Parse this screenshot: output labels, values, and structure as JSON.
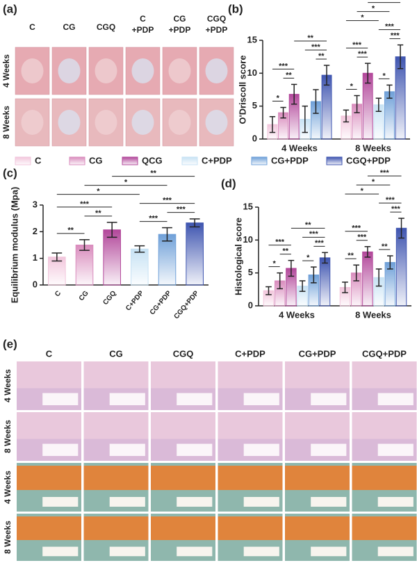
{
  "panel_labels": [
    "(a)",
    "(b)",
    "(c)",
    "(d)",
    "(e)"
  ],
  "photo_grid": {
    "columns": [
      [
        "C"
      ],
      [
        "CG"
      ],
      [
        "CGQ"
      ],
      [
        "C",
        "+PDP"
      ],
      [
        "CG",
        "+PDP"
      ],
      [
        "CGQ",
        "+PDP"
      ]
    ],
    "rows": [
      "4 Weeks",
      "8 Weeks"
    ]
  },
  "histology_grid": {
    "columns": [
      "C",
      "CG",
      "CGQ",
      "C+PDP",
      "CG+PDP",
      "CGQ+PDP"
    ],
    "rows": [
      "4 Weeks",
      "8 Weeks",
      "4 Weeks",
      "8 Weeks"
    ]
  },
  "chart_data": [
    {
      "type": "grouped_bar",
      "y_label": "O'Driscoll score",
      "categories": [
        "4 Weeks",
        "8 Weeks"
      ],
      "series": [
        {
          "name": "C",
          "color": "#f2c6dc",
          "values": [
            2.2,
            3.5
          ],
          "errors": [
            1.2,
            0.9
          ]
        },
        {
          "name": "CG",
          "color": "#d98cbd",
          "values": [
            4.0,
            5.3
          ],
          "errors": [
            0.8,
            1.3
          ]
        },
        {
          "name": "QCG",
          "color": "#b2479a",
          "values": [
            6.8,
            10.0
          ],
          "errors": [
            1.5,
            1.5
          ]
        },
        {
          "name": "C+PDP",
          "color": "#c7e2f4",
          "values": [
            3.0,
            5.2
          ],
          "errors": [
            2.0,
            1.0
          ]
        },
        {
          "name": "CG+PDP",
          "color": "#6fa0d8",
          "values": [
            5.7,
            7.2
          ],
          "errors": [
            1.8,
            1.0
          ]
        },
        {
          "name": "CGQ+PDP",
          "color": "#3f55b0",
          "values": [
            9.7,
            12.5
          ],
          "errors": [
            1.5,
            1.8
          ]
        }
      ],
      "ylim": [
        0,
        15
      ],
      "yticks": [
        0,
        5,
        10,
        15
      ],
      "annotations": [
        {
          "label": "*",
          "between": [
            0,
            1
          ]
        },
        {
          "label": "**",
          "between": [
            1,
            2
          ]
        },
        {
          "label": "***",
          "between": [
            0,
            2
          ]
        },
        {
          "label": "**",
          "between": [
            4,
            5
          ]
        },
        {
          "label": "***",
          "between": [
            3,
            5
          ]
        },
        {
          "label": "**",
          "between": [
            2,
            5
          ]
        },
        {
          "label": "*",
          "between": [
            6,
            7
          ]
        },
        {
          "label": "***",
          "between": [
            7,
            8
          ]
        },
        {
          "label": "***",
          "between": [
            6,
            8
          ]
        },
        {
          "label": "*",
          "between": [
            9,
            10
          ]
        },
        {
          "label": "***",
          "between": [
            10,
            11
          ]
        },
        {
          "label": "***",
          "between": [
            9,
            11
          ]
        },
        {
          "label": "*",
          "between": [
            6,
            9
          ]
        },
        {
          "label": "*",
          "between": [
            7,
            10
          ]
        },
        {
          "label": "**",
          "between": [
            8,
            11
          ]
        }
      ]
    },
    {
      "type": "bar",
      "y_label": "Equilibrium modulus (Mpa)",
      "categories": [
        "C",
        "CG",
        "CGQ",
        "C+PDP",
        "CG+PDP",
        "CGQ+PDP"
      ],
      "values": [
        1.05,
        1.5,
        2.07,
        1.35,
        1.9,
        2.33
      ],
      "errors": [
        0.15,
        0.2,
        0.28,
        0.12,
        0.25,
        0.15
      ],
      "colors": [
        "#f2c6dc",
        "#d98cbd",
        "#b2479a",
        "#c7e2f4",
        "#6fa0d8",
        "#3f55b0"
      ],
      "ylim": [
        0,
        3
      ],
      "yticks": [
        0,
        1,
        2,
        3
      ],
      "annotations": [
        {
          "label": "**",
          "between": [
            0,
            1
          ]
        },
        {
          "label": "**",
          "between": [
            1,
            2
          ]
        },
        {
          "label": "***",
          "between": [
            0,
            2
          ]
        },
        {
          "label": "***",
          "between": [
            3,
            4
          ]
        },
        {
          "label": "***",
          "between": [
            4,
            5
          ]
        },
        {
          "label": "***",
          "between": [
            3,
            5
          ]
        },
        {
          "label": "*",
          "between": [
            0,
            3
          ]
        },
        {
          "label": "*",
          "between": [
            1,
            4
          ]
        },
        {
          "label": "**",
          "between": [
            2,
            5
          ]
        }
      ]
    },
    {
      "type": "grouped_bar",
      "y_label": "Histological score",
      "categories": [
        "4 Weeks",
        "8 Weeks"
      ],
      "series": [
        {
          "color": "#f2c6dc",
          "values": [
            2.3,
            2.8
          ],
          "errors": [
            0.6,
            0.8
          ]
        },
        {
          "color": "#d98cbd",
          "values": [
            3.8,
            5.0
          ],
          "errors": [
            1.2,
            1.2
          ]
        },
        {
          "color": "#b2479a",
          "values": [
            5.7,
            8.2
          ],
          "errors": [
            1.2,
            0.8
          ]
        },
        {
          "color": "#c7e2f4",
          "values": [
            3.0,
            4.3
          ],
          "errors": [
            0.8,
            1.3
          ]
        },
        {
          "color": "#6fa0d8",
          "values": [
            4.7,
            6.6
          ],
          "errors": [
            1.2,
            1.0
          ]
        },
        {
          "color": "#3f55b0",
          "values": [
            7.3,
            11.8
          ],
          "errors": [
            0.8,
            1.5
          ]
        }
      ],
      "ylim": [
        0,
        15
      ],
      "yticks": [
        0,
        5,
        10,
        15
      ],
      "annotations": [
        {
          "label": "*",
          "between": [
            0,
            1
          ]
        },
        {
          "label": "**",
          "between": [
            1,
            2
          ]
        },
        {
          "label": "***",
          "between": [
            0,
            2
          ]
        },
        {
          "label": "*",
          "between": [
            3,
            4
          ]
        },
        {
          "label": "***",
          "between": [
            4,
            5
          ]
        },
        {
          "label": "***",
          "between": [
            3,
            5
          ]
        },
        {
          "label": "**",
          "between": [
            2,
            5
          ]
        },
        {
          "label": "**",
          "between": [
            6,
            7
          ]
        },
        {
          "label": "***",
          "between": [
            7,
            8
          ]
        },
        {
          "label": "***",
          "between": [
            6,
            8
          ]
        },
        {
          "label": "**",
          "between": [
            9,
            10
          ]
        },
        {
          "label": "***",
          "between": [
            10,
            11
          ]
        },
        {
          "label": "***",
          "between": [
            9,
            11
          ]
        },
        {
          "label": "*",
          "between": [
            6,
            9
          ]
        },
        {
          "label": "*",
          "between": [
            7,
            10
          ]
        },
        {
          "label": "***",
          "between": [
            8,
            11
          ]
        }
      ]
    }
  ]
}
